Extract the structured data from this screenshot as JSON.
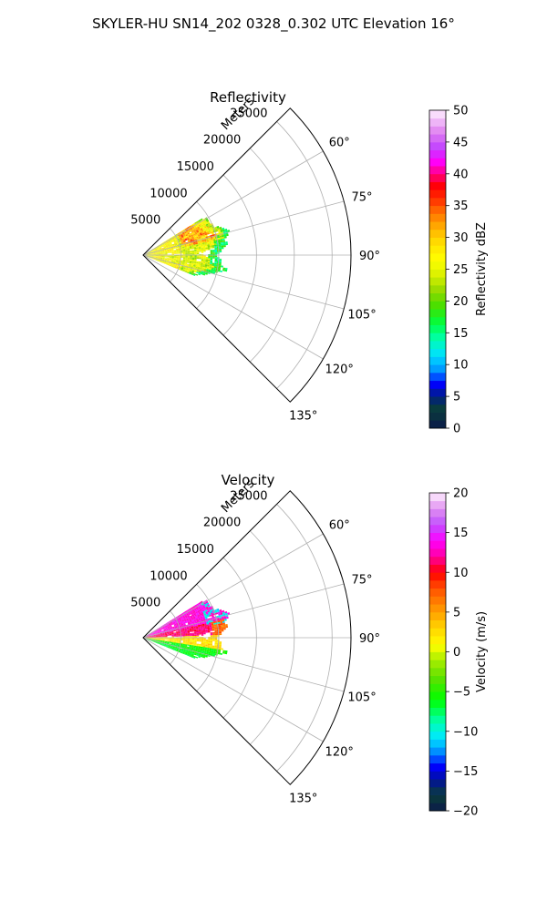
{
  "suptitle": "SKYLER-HU  SN14_202  0328_0.302 UTC Elevation 16°",
  "chart_data": [
    {
      "type": "polar-sector",
      "title": "Reflectivity",
      "radial_axis_label": "Meters",
      "radial_ticks": [
        5000,
        10000,
        15000,
        20000,
        25000
      ],
      "radial_tick_labels": [
        "5000",
        "10000",
        "15000",
        "20000",
        "25000"
      ],
      "radial_range": [
        0,
        27500
      ],
      "azimuth_range_deg": [
        45,
        135
      ],
      "azimuth_ticks": [
        60,
        75,
        90,
        105,
        120,
        135
      ],
      "azimuth_tick_labels": [
        "60°",
        "75°",
        "90°",
        "105°",
        "120°",
        "135°"
      ],
      "grid": true,
      "colorbar": {
        "label": "Reflectivity dBZ",
        "range": [
          0,
          50
        ],
        "ticks": [
          0,
          5,
          10,
          15,
          20,
          25,
          30,
          35,
          40,
          45,
          50
        ],
        "tick_labels": [
          "0",
          "5",
          "10",
          "15",
          "20",
          "25",
          "30",
          "35",
          "40",
          "45",
          "50"
        ],
        "levels": 40
      },
      "echo_extent": {
        "azimuth_deg": [
          58,
          112
        ],
        "range_m": [
          0,
          13000
        ]
      }
    },
    {
      "type": "polar-sector",
      "title": "Velocity",
      "radial_axis_label": "Meters",
      "radial_ticks": [
        5000,
        10000,
        15000,
        20000,
        25000
      ],
      "radial_tick_labels": [
        "5000",
        "10000",
        "15000",
        "20000",
        "25000"
      ],
      "radial_range": [
        0,
        27500
      ],
      "azimuth_range_deg": [
        45,
        135
      ],
      "azimuth_ticks": [
        60,
        75,
        90,
        105,
        120,
        135
      ],
      "azimuth_tick_labels": [
        "60°",
        "75°",
        "90°",
        "105°",
        "120°",
        "135°"
      ],
      "grid": true,
      "colorbar": {
        "label": "Velocity (m/s)",
        "range": [
          -20,
          20
        ],
        "ticks": [
          -20,
          -15,
          -10,
          -5,
          0,
          5,
          10,
          15,
          20
        ],
        "tick_labels": [
          "−20",
          "−15",
          "−10",
          "−5",
          "0",
          "5",
          "10",
          "15",
          "20"
        ],
        "levels": 40
      },
      "echo_extent": {
        "azimuth_deg": [
          58,
          112
        ],
        "range_m": [
          0,
          13000
        ]
      }
    }
  ],
  "colors": {
    "grid": "#b0b0b0",
    "axis": "#000000"
  }
}
